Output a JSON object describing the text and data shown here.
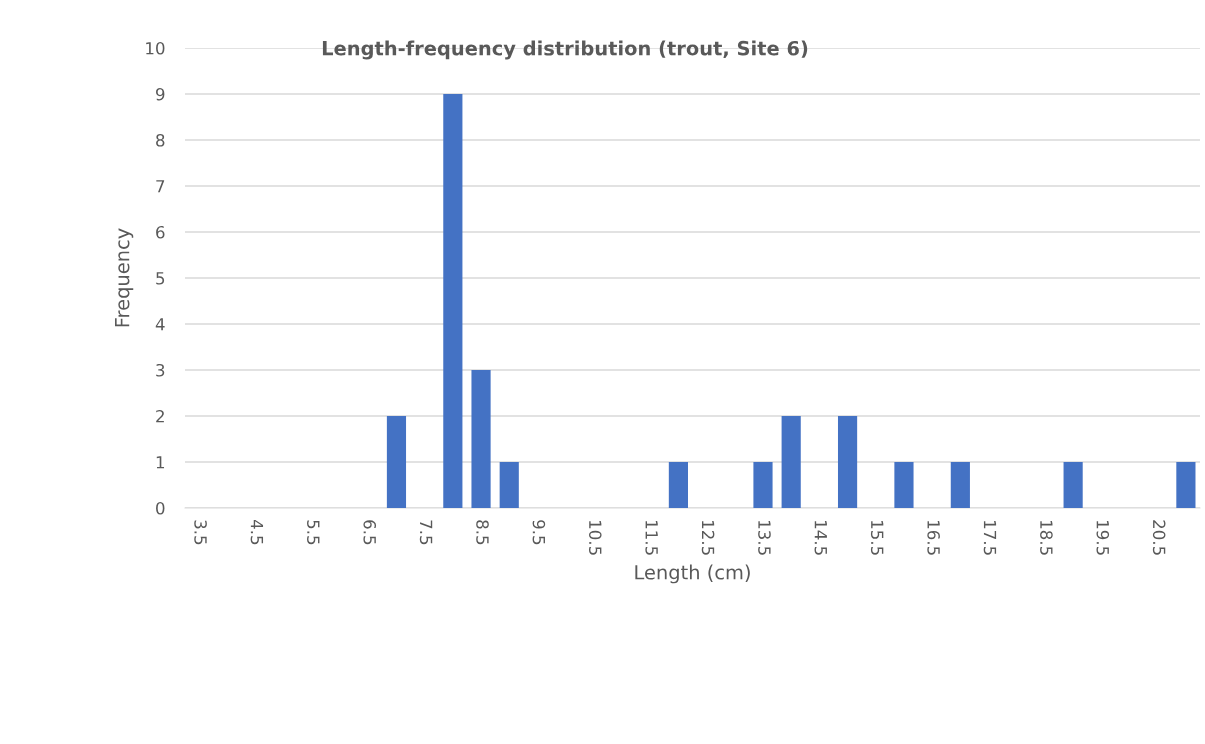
{
  "chart_data": {
    "type": "bar",
    "title": "Length-frequency distribution (trout, Site 6)",
    "xlabel": "Length (cm)",
    "ylabel": "Frequency",
    "categories": [
      "3.5",
      null,
      "4.5",
      null,
      "5.5",
      null,
      "6.5",
      null,
      "7.5",
      null,
      "8.5",
      null,
      "9.5",
      null,
      "10.5",
      null,
      "11.5",
      null,
      "12.5",
      null,
      "13.5",
      null,
      "14.5",
      null,
      "15.5",
      null,
      "16.5",
      null,
      "17.5",
      null,
      "18.5",
      null,
      "19.5",
      null,
      "20.5",
      null
    ],
    "values": [
      0,
      0,
      0,
      0,
      0,
      0,
      0,
      2,
      0,
      9,
      3,
      1,
      0,
      0,
      0,
      0,
      0,
      1,
      0,
      0,
      1,
      2,
      0,
      2,
      0,
      1,
      0,
      1,
      0,
      0,
      0,
      1,
      0,
      0,
      0,
      1
    ],
    "color": "#4472c4",
    "ylim": [
      0,
      10
    ],
    "yticks": [
      0,
      1,
      2,
      3,
      4,
      5,
      6,
      7,
      8,
      9,
      10
    ],
    "grid": "y"
  }
}
